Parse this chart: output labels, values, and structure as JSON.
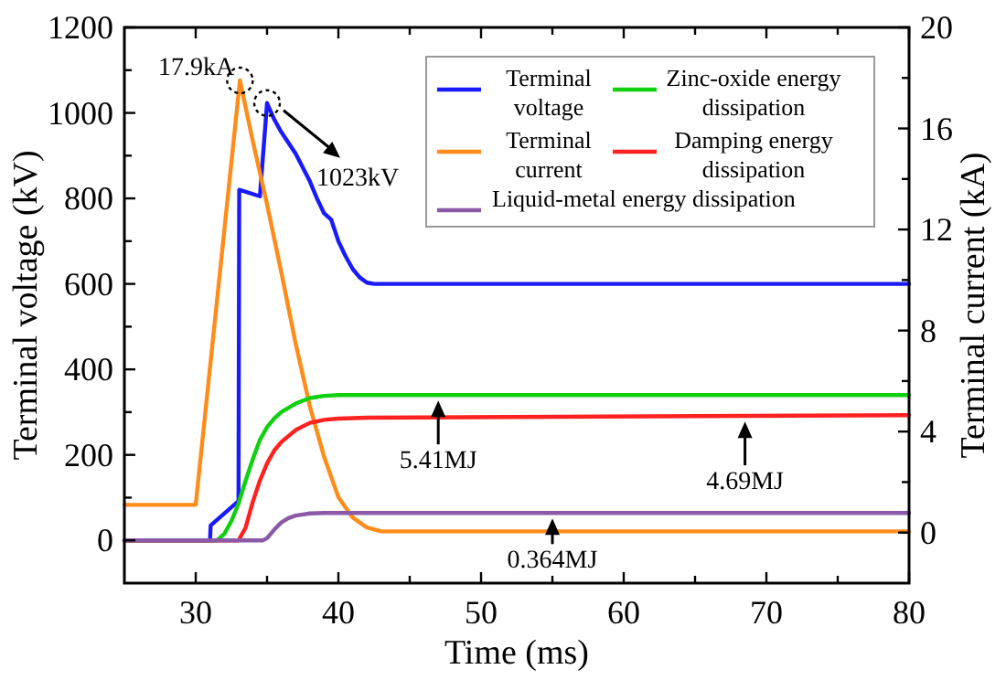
{
  "chart_data": {
    "type": "line",
    "xlabel": "Time (ms)",
    "ylabel": "Terminal voltage (kV)",
    "y2label": "Terminal current (kA)",
    "xlim": [
      25,
      80
    ],
    "xticks": [
      30,
      {
        "value": 35,
        "label": null
      },
      40,
      {
        "value": 45,
        "label": null
      },
      50,
      {
        "value": 55,
        "label": null
      },
      60,
      {
        "value": 65,
        "label": null
      },
      70,
      {
        "value": 75,
        "label": null
      },
      80
    ],
    "ylim": [
      -100,
      1200
    ],
    "yticks": [
      0,
      {
        "value": 100,
        "label": null
      },
      200,
      {
        "value": 300,
        "label": null
      },
      400,
      {
        "value": 500,
        "label": null
      },
      600,
      {
        "value": 700,
        "label": null
      },
      800,
      {
        "value": 900,
        "label": null
      },
      1000,
      {
        "value": 1100,
        "label": null
      },
      1200
    ],
    "y2lim": [
      -2,
      20
    ],
    "y2ticks": [
      0,
      {
        "value": 2,
        "label": null
      },
      4,
      {
        "value": 6,
        "label": null
      },
      8,
      {
        "value": 10,
        "label": null
      },
      12,
      {
        "value": 14,
        "label": null
      },
      16,
      {
        "value": 18,
        "label": null
      },
      20
    ],
    "grid": false,
    "legend": "top right",
    "line_style": "solid",
    "marker": "none",
    "series": [
      {
        "name": "Terminal voltage",
        "color": "#1a1aff",
        "x": [
          25,
          31,
          31.05,
          33,
          33.05,
          34.5,
          35,
          35.5,
          36,
          37,
          38,
          38.5,
          39,
          39.5,
          40,
          40.5,
          41,
          41.5,
          42,
          42.5,
          80
        ],
        "values": [
          0,
          0,
          35,
          92,
          820,
          805,
          1023,
          985,
          955,
          905,
          840,
          800,
          765,
          750,
          700,
          665,
          635,
          615,
          603,
          600,
          600
        ]
      },
      {
        "name": "Terminal current",
        "color": "#ff8c1a",
        "axis": "y2",
        "x": [
          25,
          30,
          33.1,
          34,
          35,
          36,
          37,
          38,
          39,
          40,
          41,
          42,
          43,
          80
        ],
        "values": [
          1.1,
          1.1,
          17.9,
          15.5,
          13,
          10.3,
          7.5,
          5,
          3,
          1.4,
          0.6,
          0.2,
          0.05,
          0.05
        ]
      },
      {
        "name": "Zinc-oxide energy dissipation",
        "color": "#10d010",
        "x": [
          25,
          31.5,
          32,
          32.5,
          33,
          33.5,
          34,
          34.5,
          35,
          35.5,
          36,
          37,
          38,
          39,
          40,
          80
        ],
        "values": [
          0,
          0,
          15,
          45,
          86,
          140,
          190,
          235,
          265,
          285,
          300,
          320,
          333,
          338,
          340,
          340
        ]
      },
      {
        "name": "Damping energy dissipation",
        "color": "#ff2020",
        "x": [
          25,
          33,
          33.5,
          34,
          34.5,
          35,
          35.5,
          36,
          37,
          38,
          39,
          40,
          42,
          80
        ],
        "values": [
          0,
          0,
          30,
          90,
          140,
          180,
          210,
          230,
          258,
          275,
          282,
          285,
          287,
          293
        ]
      },
      {
        "name": "Liquid-metal energy dissipation",
        "color": "#8a5aa8",
        "x": [
          25,
          34.7,
          35,
          35.5,
          36,
          36.5,
          37,
          38,
          39,
          80
        ],
        "values": [
          0,
          0,
          5,
          25,
          42,
          52,
          58,
          63,
          64,
          64
        ]
      }
    ],
    "annotations": [
      "17.9kA",
      "1023kV",
      {
        "text": "5.41MJ",
        "x": 47,
        "y": 340
      },
      {
        "text": "4.69MJ",
        "x": 68.5,
        "y": 291
      },
      {
        "text": "0.364MJ",
        "x": 55,
        "y": 64
      }
    ]
  }
}
